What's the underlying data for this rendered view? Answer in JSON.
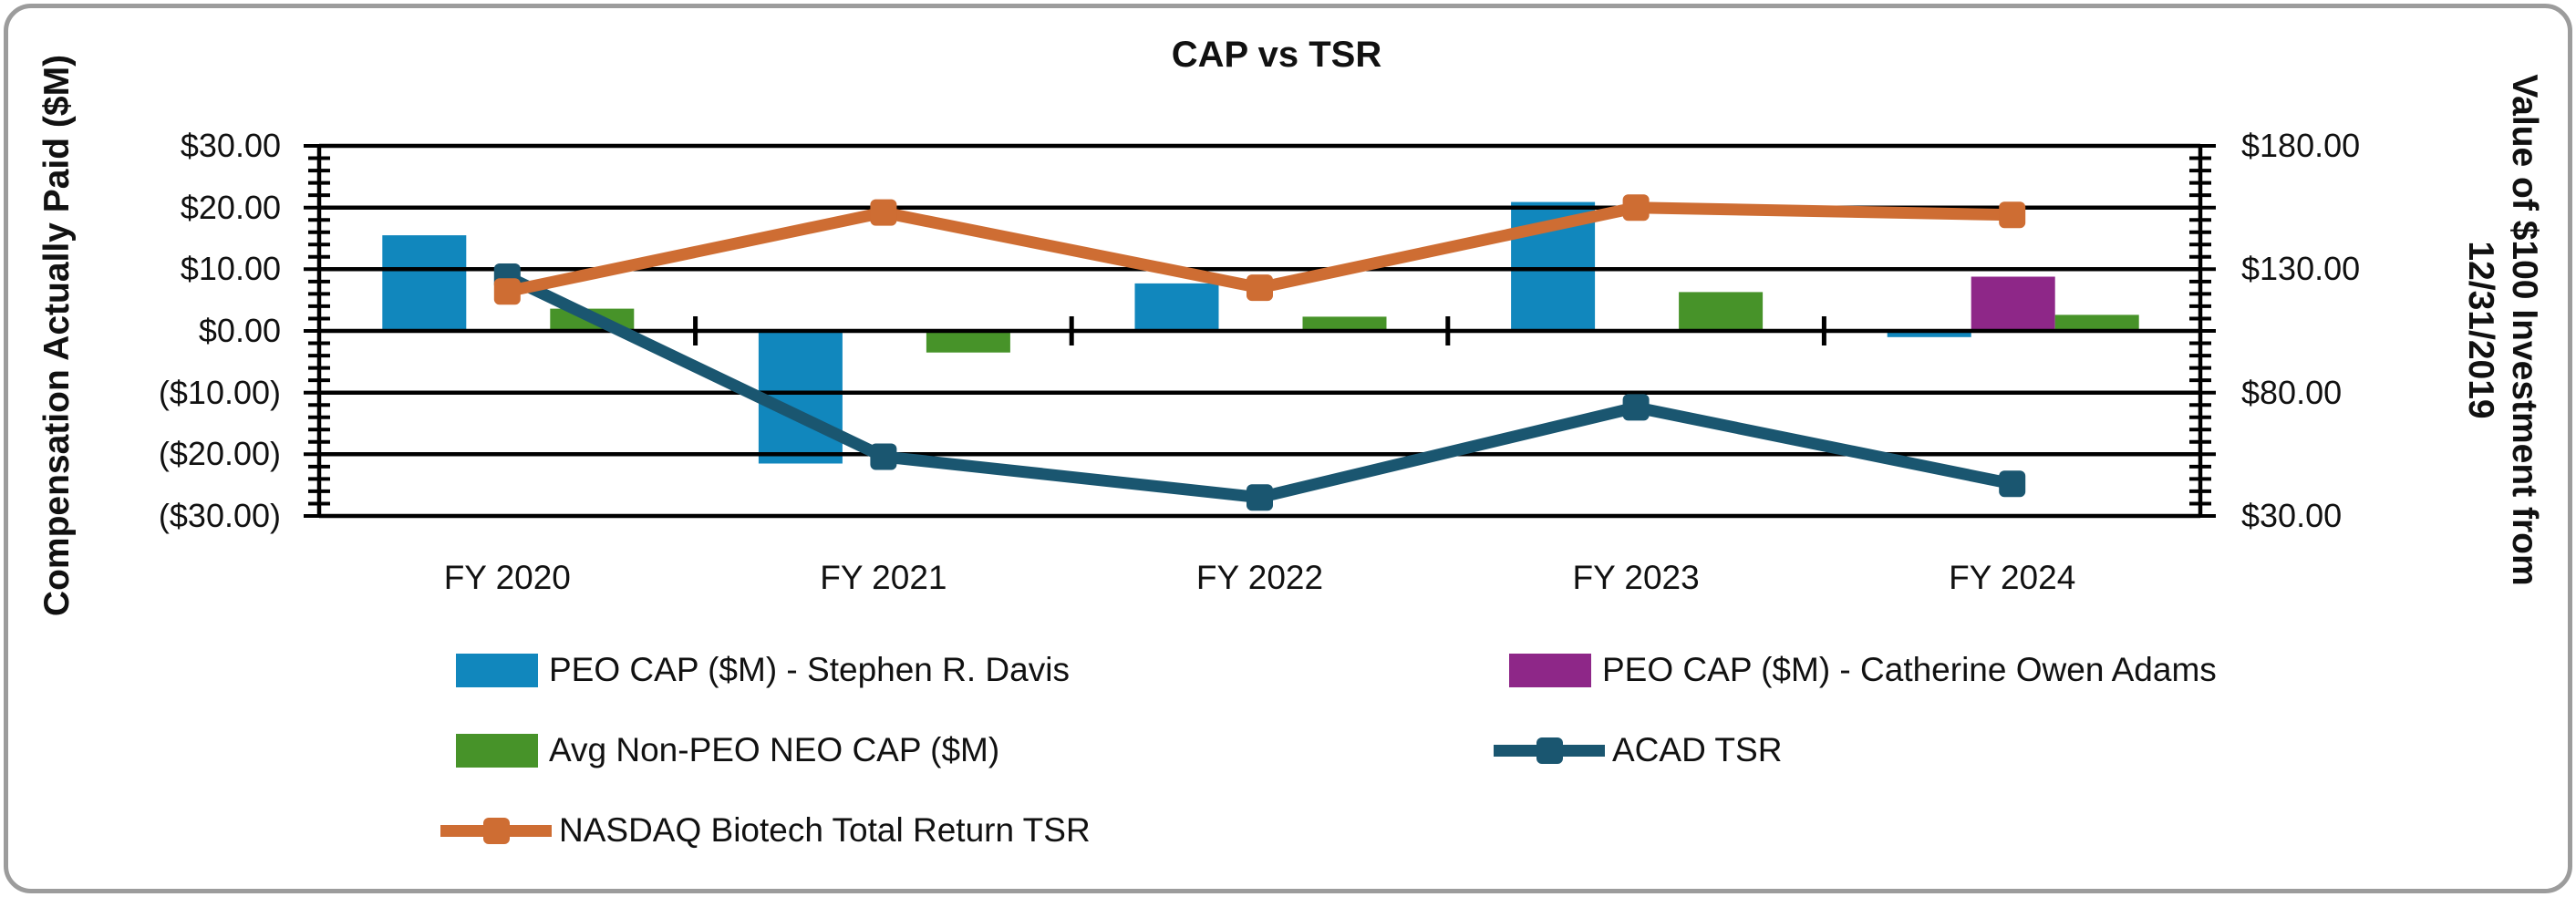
{
  "title": "CAP vs TSR",
  "left_axis": {
    "title": "Compensation Actually Paid ($M)",
    "tick_labels": [
      "$30.00",
      "$20.00",
      "$10.00",
      "$0.00",
      "($10.00)",
      "($20.00)",
      "($30.00)"
    ],
    "tick_values": [
      30,
      20,
      10,
      0,
      -10,
      -20,
      -30
    ]
  },
  "right_axis": {
    "title_line1": "Value of $100 Investment from",
    "title_line2": "12/31/2019",
    "tick_labels": [
      "$180.00",
      "$130.00",
      "$80.00",
      "$30.00"
    ],
    "tick_values": [
      180,
      130,
      80,
      30
    ]
  },
  "chart_data": {
    "type": "combo-bar-line",
    "title": "CAP vs TSR",
    "categories": [
      "FY 2020",
      "FY 2021",
      "FY 2022",
      "FY 2023",
      "FY 2024"
    ],
    "left_ylabel": "Compensation Actually Paid ($M)",
    "right_ylabel": "Value of $100 Investment from 12/31/2019",
    "left_ylim": [
      -30,
      30
    ],
    "left_step": 10,
    "right_ylim": [
      30,
      180
    ],
    "right_step": 50,
    "grid": true,
    "legend_position": "bottom",
    "bar_series": [
      {
        "name": "PEO CAP ($M) - Stephen R. Davis",
        "color": "#1187bd",
        "axis": "left",
        "values": [
          15.5,
          -21.5,
          7.7,
          20.9,
          -1.0
        ]
      },
      {
        "name": "PEO CAP ($M) - Catherine Owen Adams",
        "color": "#8e2788",
        "axis": "left",
        "values": [
          null,
          null,
          null,
          null,
          8.8
        ]
      },
      {
        "name": "Avg Non-PEO NEO CAP ($M)",
        "color": "#479329",
        "axis": "left",
        "values": [
          3.6,
          -3.5,
          2.3,
          6.3,
          2.6
        ]
      }
    ],
    "line_series": [
      {
        "name": "ACAD TSR",
        "color": "#1a5670",
        "axis": "right",
        "values": [
          127,
          54,
          37.5,
          74,
          43
        ]
      },
      {
        "name": "NASDAQ Biotech Total Return TSR",
        "color": "#ce6d33",
        "axis": "right",
        "values": [
          121,
          153,
          122.5,
          155,
          152
        ]
      }
    ]
  },
  "frame_color": "#9c9c9c",
  "grid_color": "#000000"
}
